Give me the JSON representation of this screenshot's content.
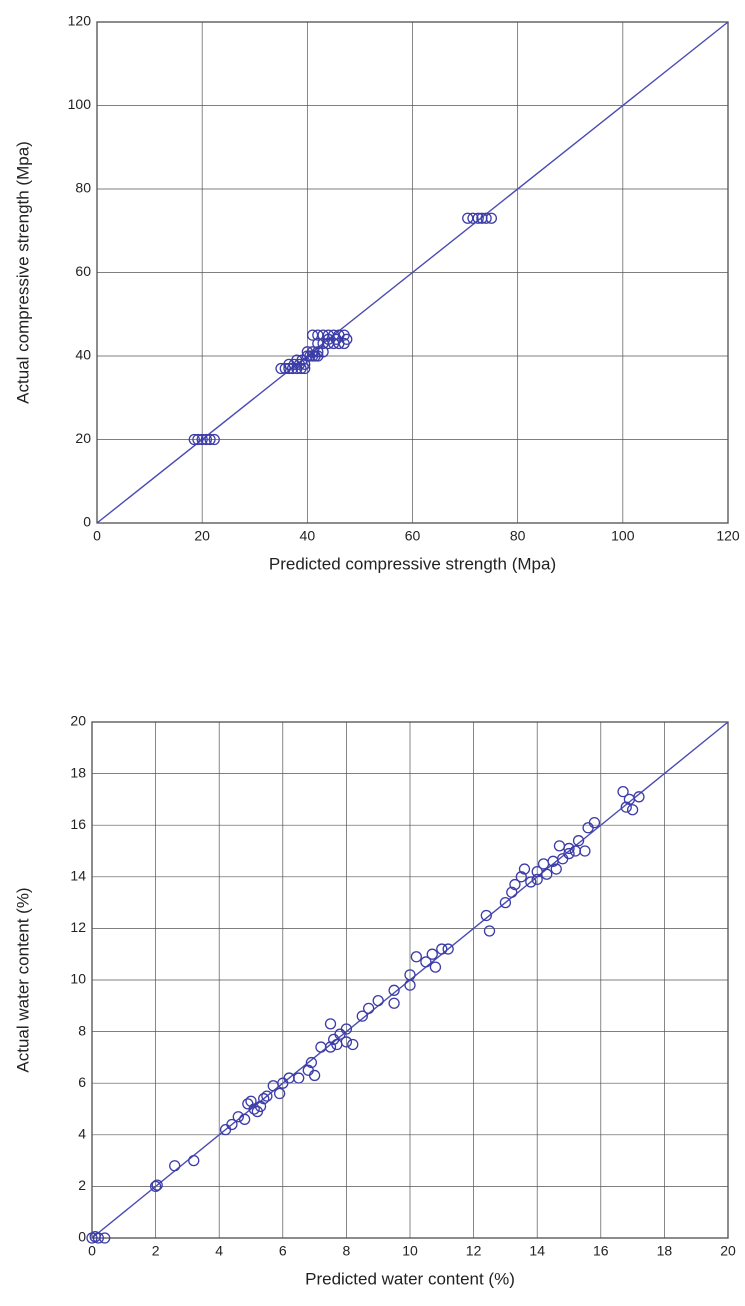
{
  "chart_data": [
    {
      "type": "scatter",
      "xlabel": "Predicted compressive strength (Mpa)",
      "ylabel": "Actual compressive strength (Mpa)",
      "xlim": [
        0,
        120
      ],
      "ylim": [
        0,
        120
      ],
      "xticks": [
        0,
        20,
        40,
        60,
        80,
        100,
        120
      ],
      "yticks": [
        0,
        20,
        40,
        60,
        80,
        100,
        120
      ],
      "grid": true,
      "diagonal": true,
      "color": "#3c3ca8",
      "x": [
        18.5,
        19.2,
        20,
        20.8,
        21.5,
        22.3,
        35,
        35.8,
        36.5,
        37.2,
        38,
        38.8,
        39.5,
        36.5,
        37.5,
        38.5,
        39.5,
        38,
        39,
        40,
        40.5,
        41,
        41.5,
        42,
        40,
        41,
        42,
        43,
        41,
        42,
        43,
        44,
        45,
        46,
        47,
        42,
        43,
        44,
        45,
        46,
        47,
        47.5,
        44,
        45.5,
        70.5,
        71.5,
        72.5,
        73.2,
        74,
        75
      ],
      "y": [
        20,
        20,
        20,
        20,
        20,
        20,
        37,
        37,
        37,
        37,
        37,
        37,
        37,
        38,
        38,
        38,
        38,
        39,
        39,
        40,
        40,
        40,
        40,
        40,
        41,
        41,
        41,
        41,
        45,
        45,
        45,
        45,
        45,
        45,
        45,
        43,
        43,
        43,
        43,
        43,
        43,
        44,
        44,
        44,
        73,
        73,
        73,
        73,
        73,
        73
      ]
    },
    {
      "type": "scatter",
      "xlabel": "Predicted water content (%)",
      "ylabel": "Actual water content (%)",
      "xlim": [
        0,
        20
      ],
      "ylim": [
        0,
        20
      ],
      "xticks": [
        0,
        2,
        4,
        6,
        8,
        10,
        12,
        14,
        16,
        18,
        20
      ],
      "yticks": [
        0,
        2,
        4,
        6,
        8,
        10,
        12,
        14,
        16,
        18,
        20
      ],
      "grid": true,
      "diagonal": true,
      "color": "#3c3ca8",
      "x": [
        0,
        0.2,
        0.4,
        0.1,
        2,
        2.05,
        2.6,
        3.2,
        4.2,
        4.4,
        4.6,
        4.8,
        4.9,
        5,
        5.1,
        5.2,
        5.3,
        5.4,
        5.5,
        5.7,
        5.9,
        6,
        6.2,
        6.5,
        6.8,
        6.9,
        7,
        7.2,
        7.5,
        7.5,
        7.6,
        7.7,
        7.8,
        8,
        8,
        8.2,
        8.5,
        8.7,
        9,
        9.5,
        9.5,
        10,
        10,
        10.2,
        10.5,
        10.7,
        10.8,
        11,
        11.2,
        12.4,
        12.5,
        13,
        13.2,
        13.3,
        13.5,
        13.6,
        13.8,
        14,
        14,
        14.2,
        14.3,
        14.5,
        14.6,
        14.7,
        14.8,
        15,
        15,
        15.2,
        15.3,
        15.5,
        15.6,
        15.8,
        16.7,
        16.8,
        17,
        17.2,
        16.9
      ],
      "y": [
        0,
        0,
        0,
        0.05,
        2,
        2.05,
        2.8,
        3,
        4.2,
        4.4,
        4.7,
        4.6,
        5.2,
        5.3,
        5,
        4.9,
        5.1,
        5.4,
        5.5,
        5.9,
        5.6,
        6,
        6.2,
        6.2,
        6.5,
        6.8,
        6.3,
        7.4,
        8.3,
        7.4,
        7.7,
        7.5,
        7.9,
        8.1,
        7.6,
        7.5,
        8.6,
        8.9,
        9.2,
        9.1,
        9.6,
        10.2,
        9.8,
        10.9,
        10.7,
        11,
        10.5,
        11.2,
        11.2,
        12.5,
        11.9,
        13,
        13.4,
        13.7,
        14,
        14.3,
        13.8,
        14.2,
        13.9,
        14.5,
        14.1,
        14.6,
        14.3,
        15.2,
        14.7,
        14.9,
        15.1,
        15,
        15.4,
        15,
        15.9,
        16.1,
        17.3,
        16.7,
        16.6,
        17.1,
        17
      ]
    }
  ]
}
